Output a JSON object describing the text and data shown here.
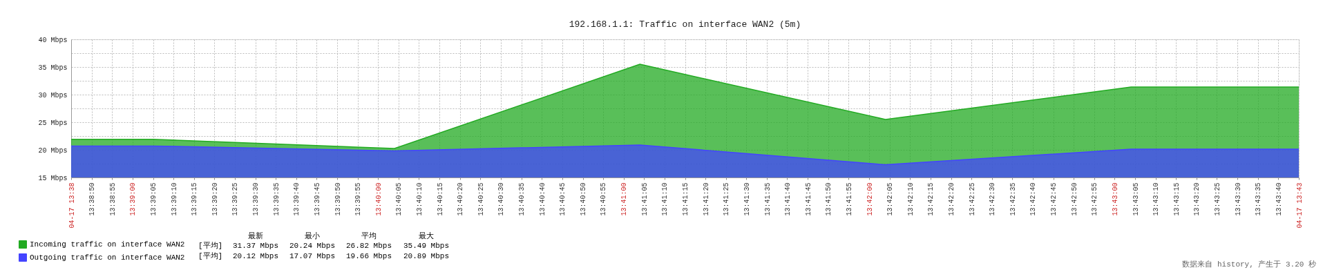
{
  "chart_data": {
    "type": "area",
    "title": "192.168.1.1: Traffic on interface WAN2 (5m)",
    "x": [
      13.64583,
      13.65139,
      13.66778,
      13.68444,
      13.70111,
      13.71778,
      13.72917
    ],
    "series": [
      {
        "name": "Incoming traffic on interface WAN2",
        "color": "#22aa22",
        "values": [
          21.9,
          21.9,
          20.24,
          35.49,
          25.5,
          31.37,
          31.37
        ]
      },
      {
        "name": "Outgoing traffic on interface WAN2",
        "color": "#4444ff",
        "values": [
          20.7,
          20.7,
          19.8,
          20.89,
          17.3,
          20.12,
          20.12
        ]
      }
    ],
    "xlim": [
      13.64583,
      13.72917
    ],
    "xticks": [
      {
        "value": 13.64583,
        "label": "04-17 13:38"
      },
      {
        "value": 13.64722,
        "label": "13:38:50"
      },
      {
        "value": 13.64861,
        "label": "13:38:55"
      },
      {
        "value": 13.65,
        "label": "13:39:00"
      },
      {
        "value": 13.65139,
        "label": "13:39:05"
      },
      {
        "value": 13.65278,
        "label": "13:39:10"
      },
      {
        "value": 13.65417,
        "label": "13:39:15"
      },
      {
        "value": 13.65556,
        "label": "13:39:20"
      },
      {
        "value": 13.65694,
        "label": "13:39:25"
      },
      {
        "value": 13.65833,
        "label": "13:39:30"
      },
      {
        "value": 13.65972,
        "label": "13:39:35"
      },
      {
        "value": 13.66111,
        "label": "13:39:40"
      },
      {
        "value": 13.6625,
        "label": "13:39:45"
      },
      {
        "value": 13.66389,
        "label": "13:39:50"
      },
      {
        "value": 13.66528,
        "label": "13:39:55"
      },
      {
        "value": 13.66667,
        "label": "13:40:00"
      },
      {
        "value": 13.66806,
        "label": "13:40:05"
      },
      {
        "value": 13.66944,
        "label": "13:40:10"
      },
      {
        "value": 13.67083,
        "label": "13:40:15"
      },
      {
        "value": 13.67222,
        "label": "13:40:20"
      },
      {
        "value": 13.67361,
        "label": "13:40:25"
      },
      {
        "value": 13.675,
        "label": "13:40:30"
      },
      {
        "value": 13.67639,
        "label": "13:40:35"
      },
      {
        "value": 13.67778,
        "label": "13:40:40"
      },
      {
        "value": 13.67917,
        "label": "13:40:45"
      },
      {
        "value": 13.68056,
        "label": "13:40:50"
      },
      {
        "value": 13.68194,
        "label": "13:40:55"
      },
      {
        "value": 13.68333,
        "label": "13:41:00"
      },
      {
        "value": 13.68472,
        "label": "13:41:05"
      },
      {
        "value": 13.68611,
        "label": "13:41:10"
      },
      {
        "value": 13.6875,
        "label": "13:41:15"
      },
      {
        "value": 13.68889,
        "label": "13:41:20"
      },
      {
        "value": 13.69028,
        "label": "13:41:25"
      },
      {
        "value": 13.69167,
        "label": "13:41:30"
      },
      {
        "value": 13.69306,
        "label": "13:41:35"
      },
      {
        "value": 13.69444,
        "label": "13:41:40"
      },
      {
        "value": 13.69583,
        "label": "13:41:45"
      },
      {
        "value": 13.69722,
        "label": "13:41:50"
      },
      {
        "value": 13.69861,
        "label": "13:41:55"
      },
      {
        "value": 13.7,
        "label": "13:42:00"
      },
      {
        "value": 13.70139,
        "label": "13:42:05"
      },
      {
        "value": 13.70278,
        "label": "13:42:10"
      },
      {
        "value": 13.70417,
        "label": "13:42:15"
      },
      {
        "value": 13.70556,
        "label": "13:42:20"
      },
      {
        "value": 13.70694,
        "label": "13:42:25"
      },
      {
        "value": 13.70833,
        "label": "13:42:30"
      },
      {
        "value": 13.70972,
        "label": "13:42:35"
      },
      {
        "value": 13.71111,
        "label": "13:42:40"
      },
      {
        "value": 13.7125,
        "label": "13:42:45"
      },
      {
        "value": 13.71389,
        "label": "13:42:50"
      },
      {
        "value": 13.71528,
        "label": "13:42:55"
      },
      {
        "value": 13.71667,
        "label": "13:43:00"
      },
      {
        "value": 13.71806,
        "label": "13:43:05"
      },
      {
        "value": 13.71944,
        "label": "13:43:10"
      },
      {
        "value": 13.72083,
        "label": "13:43:15"
      },
      {
        "value": 13.72222,
        "label": "13:43:20"
      },
      {
        "value": 13.72361,
        "label": "13:43:25"
      },
      {
        "value": 13.725,
        "label": "13:43:30"
      },
      {
        "value": 13.72639,
        "label": "13:43:35"
      },
      {
        "value": 13.72778,
        "label": "13:43:40"
      },
      {
        "value": 13.72917,
        "label": "04-17 13:43"
      }
    ],
    "ylim": [
      15,
      40
    ],
    "yticks": [
      {
        "value": 15,
        "label": "15 Mbps"
      },
      {
        "value": 17.5,
        "label": null
      },
      {
        "value": 20,
        "label": "20 Mbps"
      },
      {
        "value": 22.5,
        "label": null
      },
      {
        "value": 25,
        "label": "25 Mbps"
      },
      {
        "value": 27.5,
        "label": null
      },
      {
        "value": 30,
        "label": "30 Mbps"
      },
      {
        "value": 32.5,
        "label": null
      },
      {
        "value": 35,
        "label": "35 Mbps"
      },
      {
        "value": 37.5,
        "label": null
      },
      {
        "value": 40,
        "label": "40 Mbps"
      }
    ],
    "grid": true,
    "legend": "bottom left",
    "annotations": [
      "最新",
      "最小",
      "平均",
      "最大",
      "[平均]",
      "31.37 Mbps",
      "20.24 Mbps",
      "26.82 Mbps",
      "35.49 Mbps",
      "[平均]",
      "20.12 Mbps",
      "17.07 Mbps",
      "19.66 Mbps",
      "20.89 Mbps",
      "数据来自 history, 产生于 3.20 秒"
    ]
  }
}
